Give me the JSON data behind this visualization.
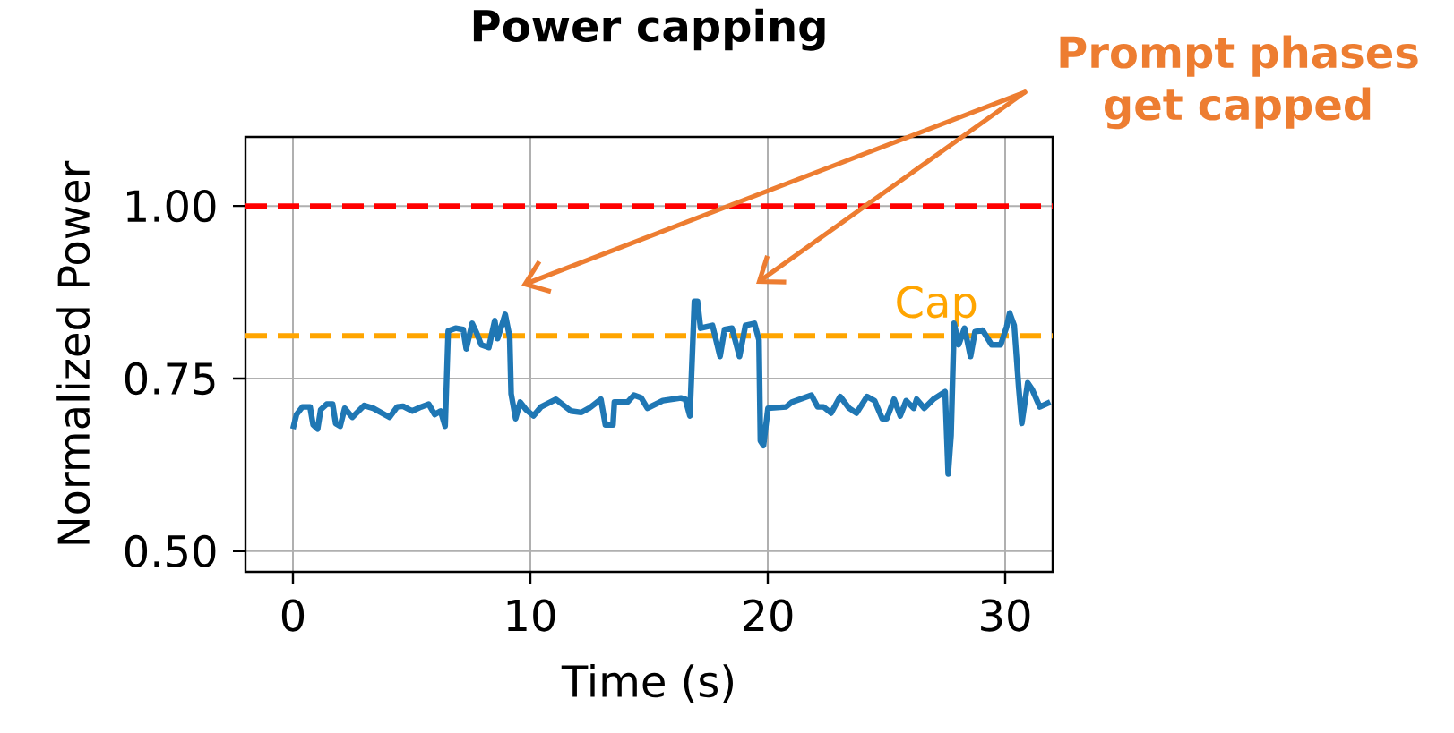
{
  "chart_data": {
    "type": "line",
    "title": "Power capping",
    "xlabel": "Time (s)",
    "ylabel": "Normalized Power",
    "annotations": [
      "Prompt phases get capped"
    ],
    "x": [
      0,
      0.15,
      0.4,
      0.72,
      0.85,
      1.04,
      1.17,
      1.42,
      1.67,
      1.8,
      1.99,
      2.18,
      2.5,
      3.0,
      3.38,
      4.07,
      4.39,
      4.64,
      5.02,
      5.4,
      5.72,
      5.97,
      6.22,
      6.41,
      6.54,
      6.85,
      7.17,
      7.3,
      7.55,
      7.74,
      7.93,
      8.25,
      8.5,
      8.62,
      8.94,
      9.13,
      9.19,
      9.38,
      9.57,
      9.82,
      10.13,
      10.45,
      11.08,
      11.71,
      12.15,
      12.47,
      12.97,
      13.16,
      13.48,
      13.54,
      14.1,
      14.36,
      14.67,
      14.93,
      15.58,
      16.34,
      16.53,
      16.72,
      16.91,
      17.04,
      17.17,
      17.42,
      17.67,
      17.99,
      18.18,
      18.49,
      18.81,
      19.06,
      19.44,
      19.63,
      19.69,
      19.82,
      20.01,
      20.77,
      21.02,
      21.34,
      21.84,
      22.1,
      22.35,
      22.67,
      23.05,
      23.43,
      23.74,
      24.18,
      24.5,
      24.82,
      25.01,
      25.32,
      25.58,
      25.83,
      26.15,
      26.27,
      26.59,
      26.97,
      27.47,
      27.6,
      27.72,
      27.85,
      28.04,
      28.29,
      28.54,
      28.73,
      29.05,
      29.43,
      29.81,
      30.06,
      30.19,
      30.38,
      30.57,
      30.7,
      30.95,
      31.14,
      31.46,
      31.9
    ],
    "series": [
      {
        "color": "#1f77b4",
        "values": [
          0.677,
          0.698,
          0.709,
          0.709,
          0.683,
          0.677,
          0.705,
          0.713,
          0.713,
          0.685,
          0.681,
          0.707,
          0.694,
          0.711,
          0.707,
          0.694,
          0.709,
          0.71,
          0.703,
          0.709,
          0.713,
          0.698,
          0.703,
          0.681,
          0.819,
          0.823,
          0.821,
          0.793,
          0.83,
          0.816,
          0.799,
          0.795,
          0.834,
          0.808,
          0.843,
          0.81,
          0.728,
          0.692,
          0.716,
          0.705,
          0.696,
          0.709,
          0.72,
          0.703,
          0.701,
          0.707,
          0.72,
          0.683,
          0.683,
          0.716,
          0.716,
          0.726,
          0.722,
          0.707,
          0.718,
          0.722,
          0.72,
          0.696,
          0.862,
          0.862,
          0.823,
          0.825,
          0.827,
          0.782,
          0.821,
          0.823,
          0.782,
          0.827,
          0.83,
          0.806,
          0.66,
          0.653,
          0.707,
          0.709,
          0.716,
          0.72,
          0.726,
          0.709,
          0.709,
          0.7,
          0.724,
          0.707,
          0.7,
          0.724,
          0.718,
          0.692,
          0.692,
          0.72,
          0.696,
          0.718,
          0.707,
          0.72,
          0.707,
          0.72,
          0.731,
          0.612,
          0.668,
          0.83,
          0.799,
          0.823,
          0.782,
          0.818,
          0.82,
          0.799,
          0.799,
          0.825,
          0.845,
          0.827,
          0.737,
          0.685,
          0.744,
          0.734,
          0.709,
          0.716
        ]
      }
    ],
    "ref_lines": [
      {
        "axis": "y",
        "value": 1.0,
        "color": "#ff0000",
        "line_style": "dashed"
      },
      {
        "axis": "y",
        "value": 0.812,
        "label": "Cap",
        "color": "#ffa500",
        "line_style": "dashed"
      }
    ],
    "xlim": [
      -2,
      32
    ],
    "ylim": [
      0.47,
      1.1
    ],
    "xticks": [
      0,
      10,
      20,
      30
    ],
    "yticks": [
      {
        "value": 0.5,
        "label": "0.50"
      },
      {
        "value": 0.75,
        "label": "0.75"
      },
      {
        "value": 1.0,
        "label": "1.00"
      }
    ],
    "grid": true,
    "marker": "none",
    "line_style": "solid"
  }
}
